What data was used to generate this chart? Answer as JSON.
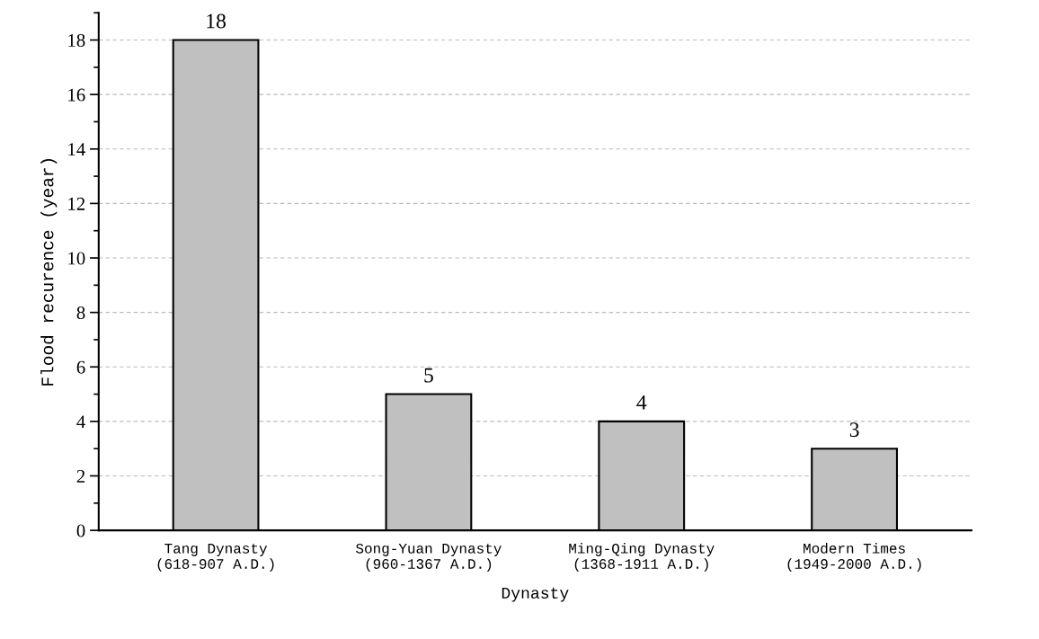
{
  "chart_data": {
    "type": "bar",
    "categories": [
      "Tang Dynasty\n(618-907 A.D.)",
      "Song-Yuan Dynasty\n(960-1367 A.D.)",
      "Ming-Qing Dynasty\n(1368-1911 A.D.)",
      "Modern Times\n(1949-2000 A.D.)"
    ],
    "values": [
      18,
      5,
      4,
      3
    ],
    "color": "#c0c0c0",
    "xlabel": "Dynasty",
    "ylabel": "Flood recurence (year)",
    "ylim": [
      0,
      19
    ],
    "yticks": [
      0,
      2,
      4,
      6,
      8,
      10,
      12,
      14,
      16,
      18
    ],
    "grid": "y",
    "data_labels": true
  }
}
